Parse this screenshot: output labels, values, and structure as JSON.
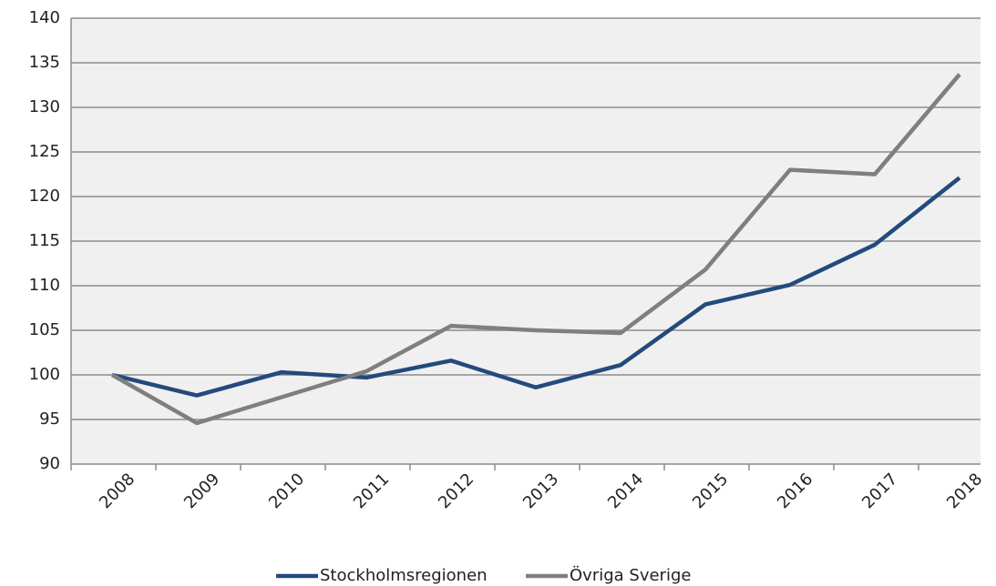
{
  "chart_data": {
    "type": "line",
    "categories": [
      "2008",
      "2009",
      "2010",
      "2011",
      "2012",
      "2013",
      "2014",
      "2015",
      "2016",
      "2017",
      "2018"
    ],
    "series": [
      {
        "name": "Stockholmsregionen",
        "color": "#234a7d",
        "values": [
          100,
          97.7,
          100.3,
          99.7,
          101.6,
          98.6,
          101.1,
          107.9,
          110.1,
          114.6,
          122.1
        ]
      },
      {
        "name": "Övriga Sverige",
        "color": "#7f7f7f",
        "values": [
          100,
          94.6,
          97.5,
          100.4,
          105.5,
          105.0,
          104.7,
          111.8,
          123.0,
          122.5,
          133.7
        ]
      }
    ],
    "ylim": [
      90,
      140
    ],
    "yticks": [
      90,
      95,
      100,
      105,
      110,
      115,
      120,
      125,
      130,
      135,
      140
    ],
    "grid": true,
    "legend": "bottom"
  }
}
